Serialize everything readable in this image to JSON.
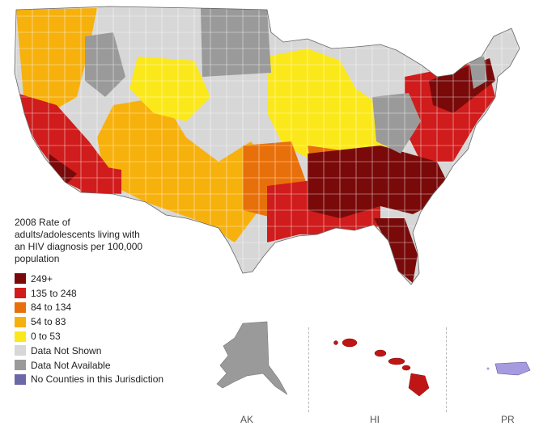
{
  "legend": {
    "title": "2008 Rate of adults/adolescents living with an HIV diagnosis per 100,000 population",
    "items": [
      {
        "label": "249+",
        "color": "#7a0a0a"
      },
      {
        "label": "135 to 248",
        "color": "#d01c1c"
      },
      {
        "label": "84 to 134",
        "color": "#e8700a"
      },
      {
        "label": "54 to 83",
        "color": "#f7b10d"
      },
      {
        "label": "0 to 53",
        "color": "#fbe81b"
      },
      {
        "label": "Data Not Shown",
        "color": "#d7d7d7"
      },
      {
        "label": "Data Not Available",
        "color": "#9a9a9a"
      },
      {
        "label": "No Counties in this Jurisdiction",
        "color": "#6b68a8"
      }
    ]
  },
  "insets": {
    "ak": {
      "label": "AK",
      "color": "#9a9a9a"
    },
    "hi": {
      "label": "HI",
      "color": "#c01515"
    },
    "pr": {
      "label": "PR",
      "color": "#a79be0"
    }
  }
}
